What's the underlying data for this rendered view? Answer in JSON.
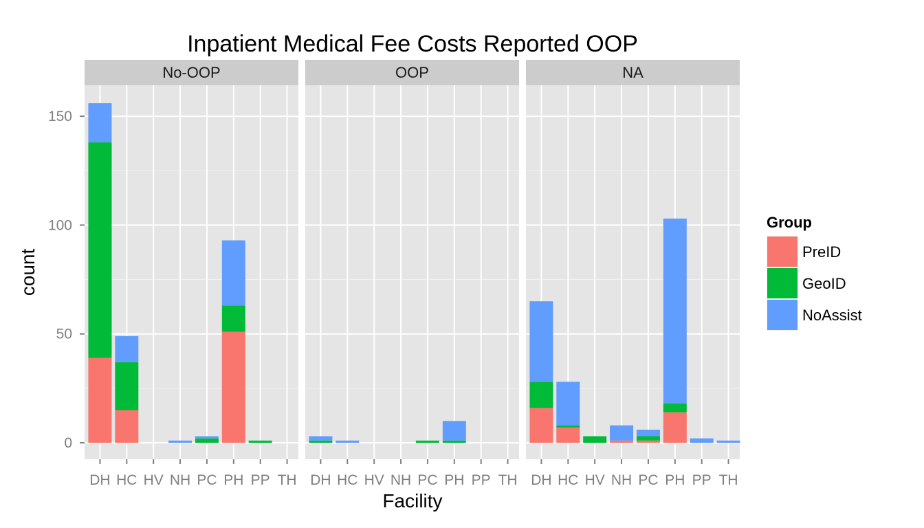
{
  "chart_data": {
    "type": "bar",
    "stacked": true,
    "title": "Inpatient Medical Fee Costs Reported OOP",
    "xlabel": "Facility",
    "ylabel": "count",
    "ylim": [
      0,
      165
    ],
    "yticks": [
      0,
      50,
      100,
      150
    ],
    "grid": true,
    "legend": {
      "title": "Group",
      "placement": "right"
    },
    "categories": [
      "DH",
      "HC",
      "HV",
      "NH",
      "PC",
      "PH",
      "PP",
      "TH"
    ],
    "colors": {
      "PreID": "#F8766D",
      "GeoID": "#00BA38",
      "NoAssist": "#619CFF"
    },
    "panels": [
      {
        "label": "No-OOP",
        "series": [
          {
            "name": "PreID",
            "values": [
              39,
              15,
              0,
              0,
              0,
              51,
              0,
              0
            ]
          },
          {
            "name": "GeoID",
            "values": [
              99,
              22,
              0,
              0,
              2,
              12,
              1,
              0
            ]
          },
          {
            "name": "NoAssist",
            "values": [
              18,
              12,
              0,
              1,
              1,
              30,
              0,
              0
            ]
          }
        ]
      },
      {
        "label": "OOP",
        "series": [
          {
            "name": "PreID",
            "values": [
              0,
              0,
              0,
              0,
              0,
              0,
              0,
              0
            ]
          },
          {
            "name": "GeoID",
            "values": [
              1,
              0,
              0,
              0,
              1,
              1,
              0,
              0
            ]
          },
          {
            "name": "NoAssist",
            "values": [
              2,
              1,
              0,
              0,
              0,
              9,
              0,
              0
            ]
          }
        ]
      },
      {
        "label": "NA",
        "series": [
          {
            "name": "PreID",
            "values": [
              16,
              7,
              0,
              1,
              1,
              14,
              0,
              0
            ]
          },
          {
            "name": "GeoID",
            "values": [
              12,
              1,
              3,
              0,
              2,
              4,
              0,
              0
            ]
          },
          {
            "name": "NoAssist",
            "values": [
              37,
              20,
              0,
              7,
              3,
              85,
              2,
              1
            ]
          }
        ]
      }
    ]
  }
}
